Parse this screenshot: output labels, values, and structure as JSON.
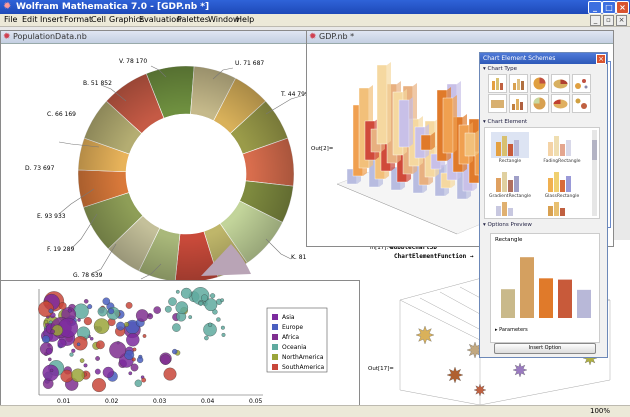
{
  "window": {
    "title": "Wolfram Mathematica 7.0 - [GDP.nb *]"
  },
  "menu": [
    "File",
    "Edit",
    "Insert",
    "Format",
    "Cell",
    "Graphics",
    "Evaluation",
    "Palettes",
    "Window",
    "Help"
  ],
  "notebooks": {
    "population": {
      "title": "PopulationData.nb"
    },
    "gdp": {
      "title": "GDP.nb *",
      "out_label": "Out[2]="
    }
  },
  "bubble_cell": {
    "in_label": "In[17]:=",
    "line1": "BubbleChart3D",
    "line2": "ChartElementFunction →",
    "out_label": "Out[17]="
  },
  "donut": {
    "labels": [
      {
        "text": "V. 78 170"
      },
      {
        "text": "U. 71 687"
      },
      {
        "text": "T. 44 799"
      },
      {
        "text": "B. 51 852"
      },
      {
        "text": "C. 66 169"
      },
      {
        "text": "D. 73 697"
      },
      {
        "text": "E. 93 933"
      },
      {
        "text": "F. 19 289"
      },
      {
        "text": "G. 78 639"
      },
      {
        "text": "K. 81"
      }
    ]
  },
  "scatter": {
    "x_ticks": [
      "0.01",
      "0.02",
      "0.03",
      "0.04",
      "0.05"
    ],
    "legend": [
      {
        "name": "Asia",
        "color": "#7b2a9e"
      },
      {
        "name": "Europe",
        "color": "#4a5fc0"
      },
      {
        "name": "Africa",
        "color": "#7f2f8f"
      },
      {
        "name": "Oceania",
        "color": "#5faa9f"
      },
      {
        "name": "NorthAmerica",
        "color": "#9aa53a"
      },
      {
        "name": "SouthAmerica",
        "color": "#c8463a"
      }
    ]
  },
  "palette": {
    "title": "Chart Element Schemes",
    "section_chart_type": "Chart Type",
    "section_chart_element": "Chart Element",
    "section_options_preview": "Options Preview",
    "elements": [
      "Rectangle",
      "FadingRectangle",
      "GradientRectangle",
      "GlassRectangle"
    ],
    "preview_title": "Rectangle",
    "parameters_label": "Parameters",
    "insert_button": "Insert Option",
    "preview_bars": [
      {
        "value": 0.45,
        "color": "#c9b98a"
      },
      {
        "value": 0.95,
        "color": "#d4a060"
      },
      {
        "value": 0.62,
        "color": "#e07a2a"
      },
      {
        "value": 0.6,
        "color": "#c85a3a"
      },
      {
        "value": 0.44,
        "color": "#b8b8d8"
      }
    ]
  },
  "status": {
    "zoom": "100%"
  }
}
